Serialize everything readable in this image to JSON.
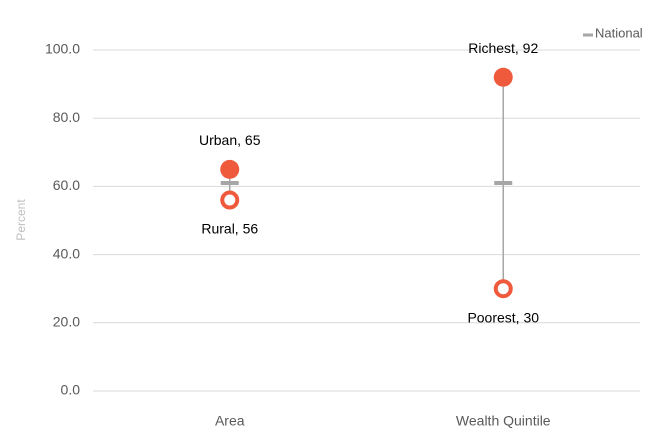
{
  "chart_data": {
    "type": "dot-range",
    "categories": [
      "Area",
      "Wealth Quintile"
    ],
    "y_label": "Percent",
    "ylim": [
      0,
      100
    ],
    "yticks": [
      {
        "value": 0,
        "label": "0.0"
      },
      {
        "value": 20,
        "label": "20.0"
      },
      {
        "value": 40,
        "label": "40.0"
      },
      {
        "value": 60,
        "label": "60.0"
      },
      {
        "value": 80,
        "label": "80.0"
      },
      {
        "value": 100,
        "label": "100.0"
      }
    ],
    "grid": true,
    "legend": "top-right",
    "range_color": "#a6a6a6",
    "series": [
      {
        "name": "National",
        "color": "#a6a6a6",
        "marker": "dash",
        "values": [
          61,
          61
        ]
      },
      {
        "color": "#ef5a3c",
        "marker": "filled",
        "label_position": "above",
        "values": [
          65,
          92
        ],
        "value_labels": [
          "Urban, 65",
          "Richest, 92"
        ]
      },
      {
        "color": "#ef5a3c",
        "marker": "ring",
        "label_position": "below",
        "values": [
          56,
          30
        ],
        "value_labels": [
          "Rural, 56",
          "Poorest, 30"
        ]
      }
    ]
  }
}
